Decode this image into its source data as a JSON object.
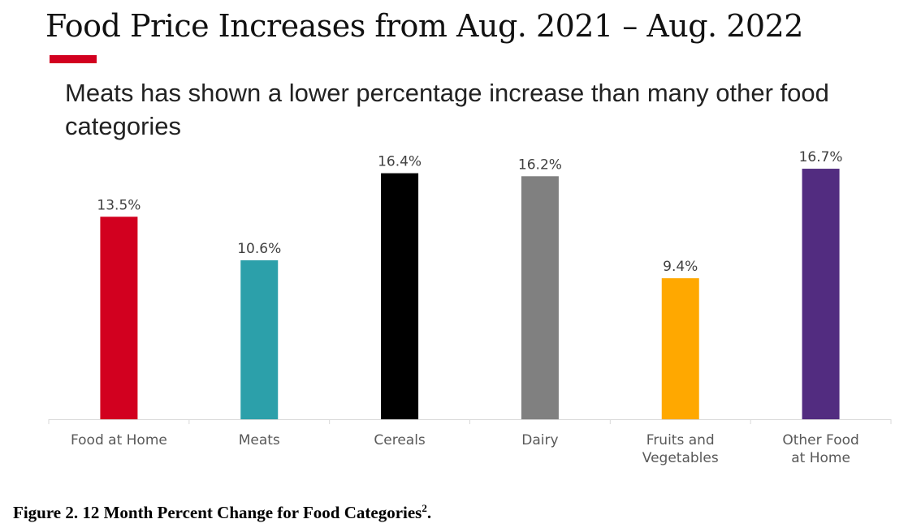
{
  "title": "Food Price Increases from Aug. 2021 – Aug. 2022",
  "subtitle": "Meats has shown a lower percentage increase than many other food categories",
  "caption": "Figure 2. 12 Month Percent Change for Food Categories",
  "caption_sup": "2",
  "caption_end": ".",
  "accent_color": "#d2001f",
  "chart_data": {
    "type": "bar",
    "categories": [
      "Food at Home",
      "Meats",
      "Cereals",
      "Dairy",
      "Fruits and Vegetables",
      "Other Food at Home"
    ],
    "values": [
      13.5,
      10.6,
      16.4,
      16.2,
      9.4,
      16.7
    ],
    "data_labels": [
      "13.5%",
      "10.6%",
      "16.4%",
      "16.2%",
      "9.4%",
      "16.7%"
    ],
    "colors": [
      "#d2001f",
      "#2ca0aa",
      "#000000",
      "#808080",
      "#ffa800",
      "#522c80"
    ],
    "ylim": [
      0,
      18
    ],
    "grid": false,
    "y_axis_visible": false
  }
}
